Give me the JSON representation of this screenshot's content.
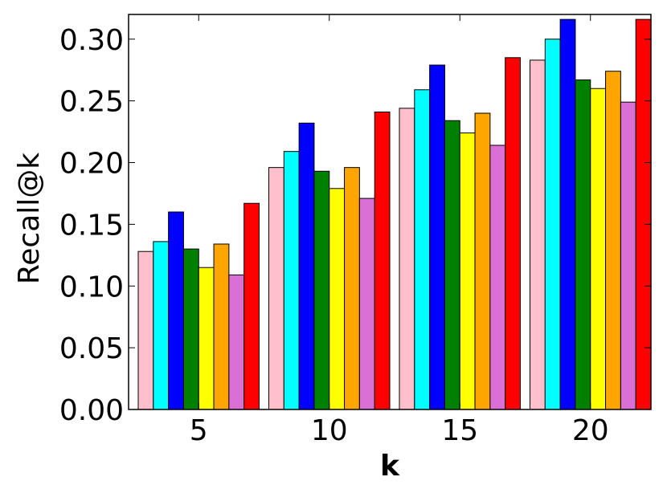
{
  "chart_data": {
    "type": "bar",
    "xlabel": "k",
    "ylabel": "Recall@k",
    "categories": [
      "5",
      "10",
      "15",
      "20"
    ],
    "ylim": [
      0.0,
      0.32
    ],
    "yticks": [
      "0.00",
      "0.05",
      "0.10",
      "0.15",
      "0.20",
      "0.25",
      "0.30"
    ],
    "grid": false,
    "series": [
      {
        "color": "#ffc0cb",
        "values": [
          0.128,
          0.196,
          0.244,
          0.283
        ]
      },
      {
        "color": "#00ffff",
        "values": [
          0.136,
          0.209,
          0.259,
          0.3
        ]
      },
      {
        "color": "#0000ff",
        "values": [
          0.16,
          0.232,
          0.279,
          0.316
        ]
      },
      {
        "color": "#008000",
        "values": [
          0.13,
          0.193,
          0.234,
          0.267
        ]
      },
      {
        "color": "#ffff00",
        "values": [
          0.115,
          0.179,
          0.224,
          0.26
        ]
      },
      {
        "color": "#ffa500",
        "values": [
          0.134,
          0.196,
          0.24,
          0.274
        ]
      },
      {
        "color": "#da70d6",
        "values": [
          0.109,
          0.171,
          0.214,
          0.249
        ]
      },
      {
        "color": "#ff0000",
        "values": [
          0.167,
          0.241,
          0.285,
          0.316
        ]
      }
    ]
  }
}
